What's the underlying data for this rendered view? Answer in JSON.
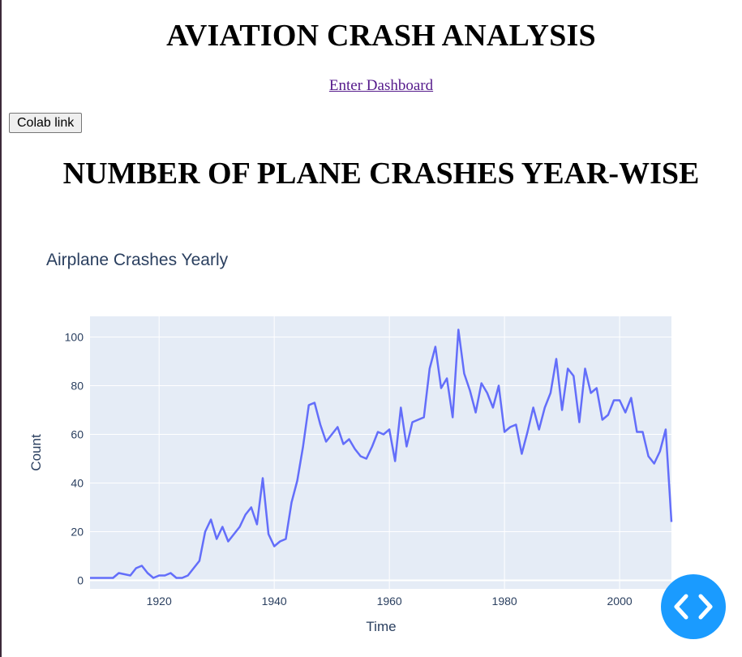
{
  "header": {
    "title": "AVIATION CRASH ANALYSIS",
    "dashboard_link": "Enter Dashboard"
  },
  "toolbar": {
    "colab_label": "Colab link"
  },
  "section": {
    "title": "NUMBER OF PLANE CRASHES YEAR-WISE"
  },
  "colors": {
    "line": "#636efa",
    "plot_bg": "#e5ecf6",
    "text": "#2a3f5f",
    "fab": "#1a9bff"
  },
  "icons": {
    "fab": "code-arrows-icon"
  },
  "chart_data": {
    "type": "line",
    "title": "Airplane Crashes Yearly",
    "xlabel": "Time",
    "ylabel": "Count",
    "xlim": [
      1908,
      2009
    ],
    "ylim": [
      -3.5,
      108.5
    ],
    "xticks": [
      1920,
      1940,
      1960,
      1980,
      2000
    ],
    "yticks": [
      0,
      20,
      40,
      60,
      80,
      100
    ],
    "grid": true,
    "series": [
      {
        "x": [
          1908,
          1912,
          1913,
          1915,
          1916,
          1917,
          1918,
          1919,
          1920,
          1921,
          1922,
          1923,
          1924,
          1925,
          1926,
          1927,
          1928,
          1929,
          1930,
          1931,
          1932,
          1933,
          1934,
          1935,
          1936,
          1937,
          1938,
          1939,
          1940,
          1941,
          1942,
          1943,
          1944,
          1945,
          1946,
          1947,
          1948,
          1949,
          1950,
          1951,
          1952,
          1953,
          1954,
          1955,
          1956,
          1957,
          1958,
          1959,
          1960,
          1961,
          1962,
          1963,
          1964,
          1966,
          1967,
          1968,
          1969,
          1970,
          1971,
          1972,
          1973,
          1974,
          1975,
          1976,
          1977,
          1978,
          1979,
          1980,
          1981,
          1982,
          1983,
          1984,
          1985,
          1986,
          1987,
          1988,
          1989,
          1990,
          1991,
          1992,
          1993,
          1994,
          1995,
          1996,
          1997,
          1998,
          1999,
          2000,
          2001,
          2002,
          2003,
          2004,
          2005,
          2006,
          2007,
          2008,
          2009
        ],
        "y": [
          1,
          1,
          3,
          2,
          5,
          6,
          3,
          1,
          2,
          2,
          3,
          1,
          1,
          2,
          5,
          8,
          20,
          25,
          17,
          22,
          16,
          19,
          22,
          27,
          30,
          23,
          42,
          19,
          14,
          16,
          17,
          32,
          41,
          55,
          72,
          73,
          64,
          57,
          60,
          63,
          56,
          58,
          54,
          51,
          50,
          55,
          61,
          60,
          62,
          49,
          71,
          55,
          65,
          67,
          87,
          96,
          79,
          83,
          67,
          103,
          85,
          78,
          69,
          81,
          77,
          71,
          80,
          61,
          63,
          64,
          52,
          61,
          71,
          62,
          71,
          77,
          91,
          70,
          87,
          84,
          65,
          87,
          77,
          79,
          66,
          68,
          74,
          74,
          69,
          75,
          61,
          61,
          51,
          48,
          53,
          62,
          24
        ]
      }
    ]
  }
}
